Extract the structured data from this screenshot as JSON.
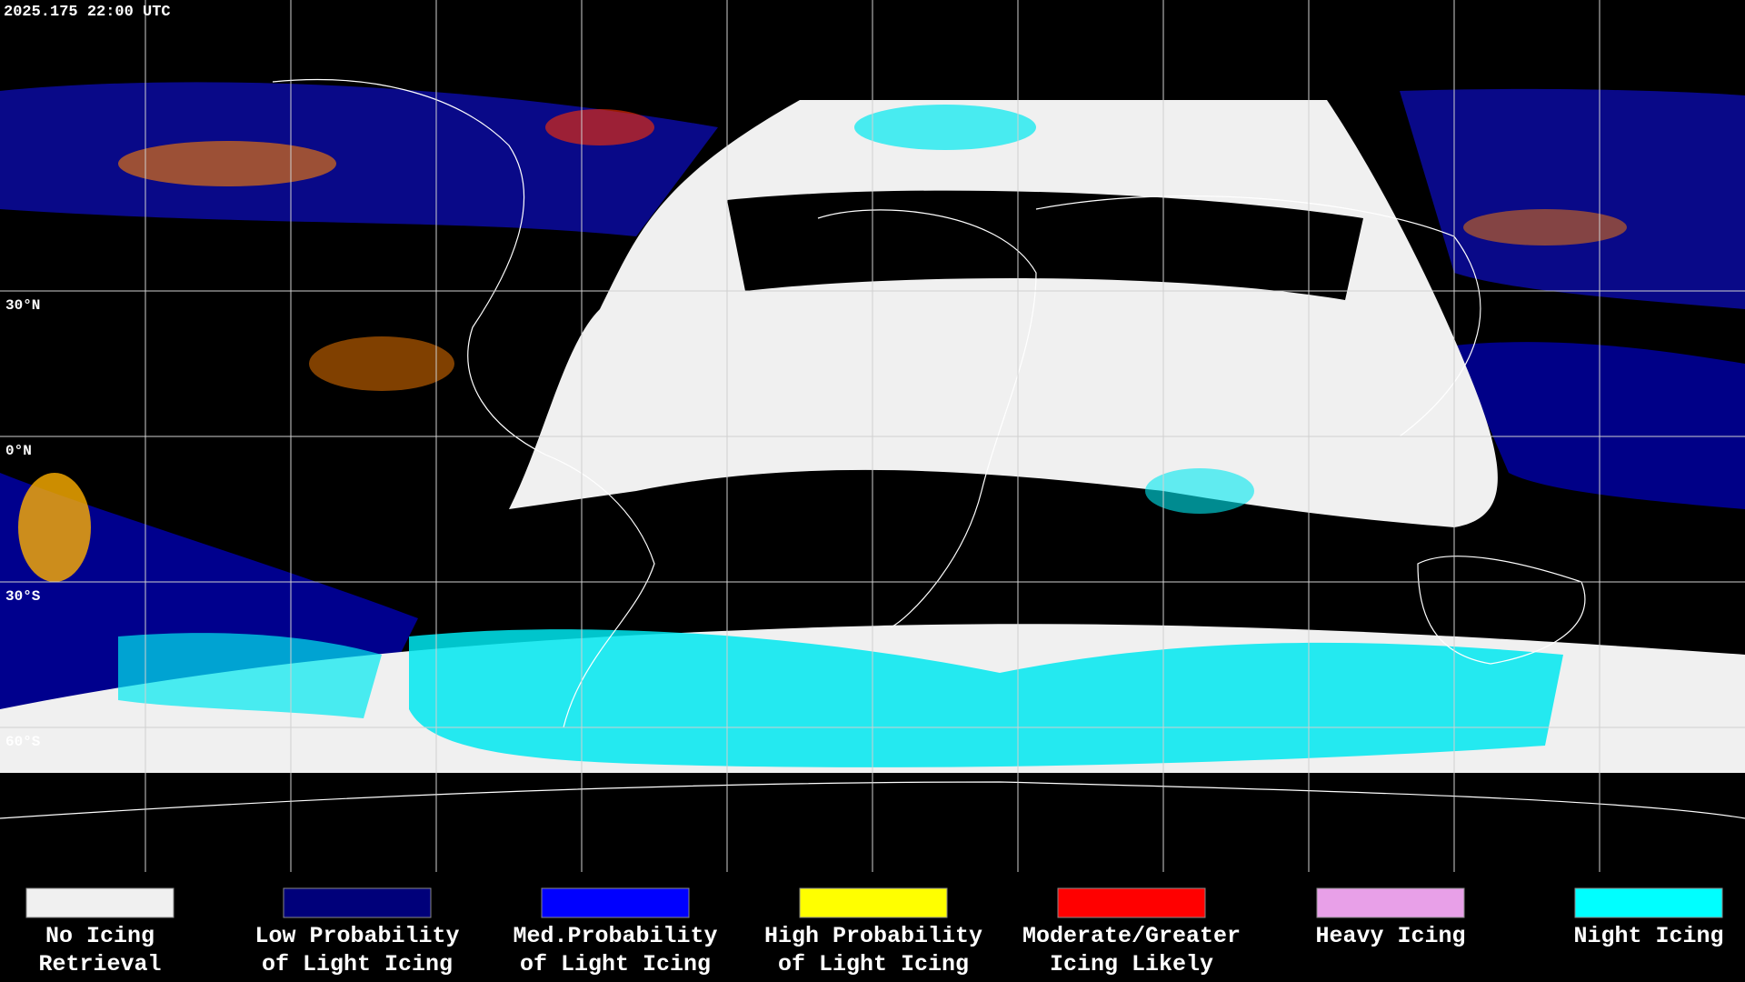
{
  "header": {
    "timestamp": "2025.175 22:00 UTC"
  },
  "grid": {
    "lat_labels": [
      "30°N",
      "0°N",
      "30°S",
      "60°S"
    ]
  },
  "legend": {
    "items": [
      {
        "label": [
          "No Icing",
          "Retrieval"
        ],
        "color": "#f0f0f0"
      },
      {
        "label": [
          "Low Probability",
          "of Light Icing"
        ],
        "color": "#00007a"
      },
      {
        "label": [
          "Med.Probability",
          "of Light Icing"
        ],
        "color": "#0000ff"
      },
      {
        "label": [
          "High Probability",
          "of Light Icing"
        ],
        "color": "#ffff00"
      },
      {
        "label": [
          "Moderate/Greater",
          "Icing Likely"
        ],
        "color": "#ff0000"
      },
      {
        "label": [
          "Heavy Icing",
          ""
        ],
        "color": "#e8a0e8"
      },
      {
        "label": [
          "Night Icing",
          ""
        ],
        "color": "#00ffff"
      }
    ]
  }
}
